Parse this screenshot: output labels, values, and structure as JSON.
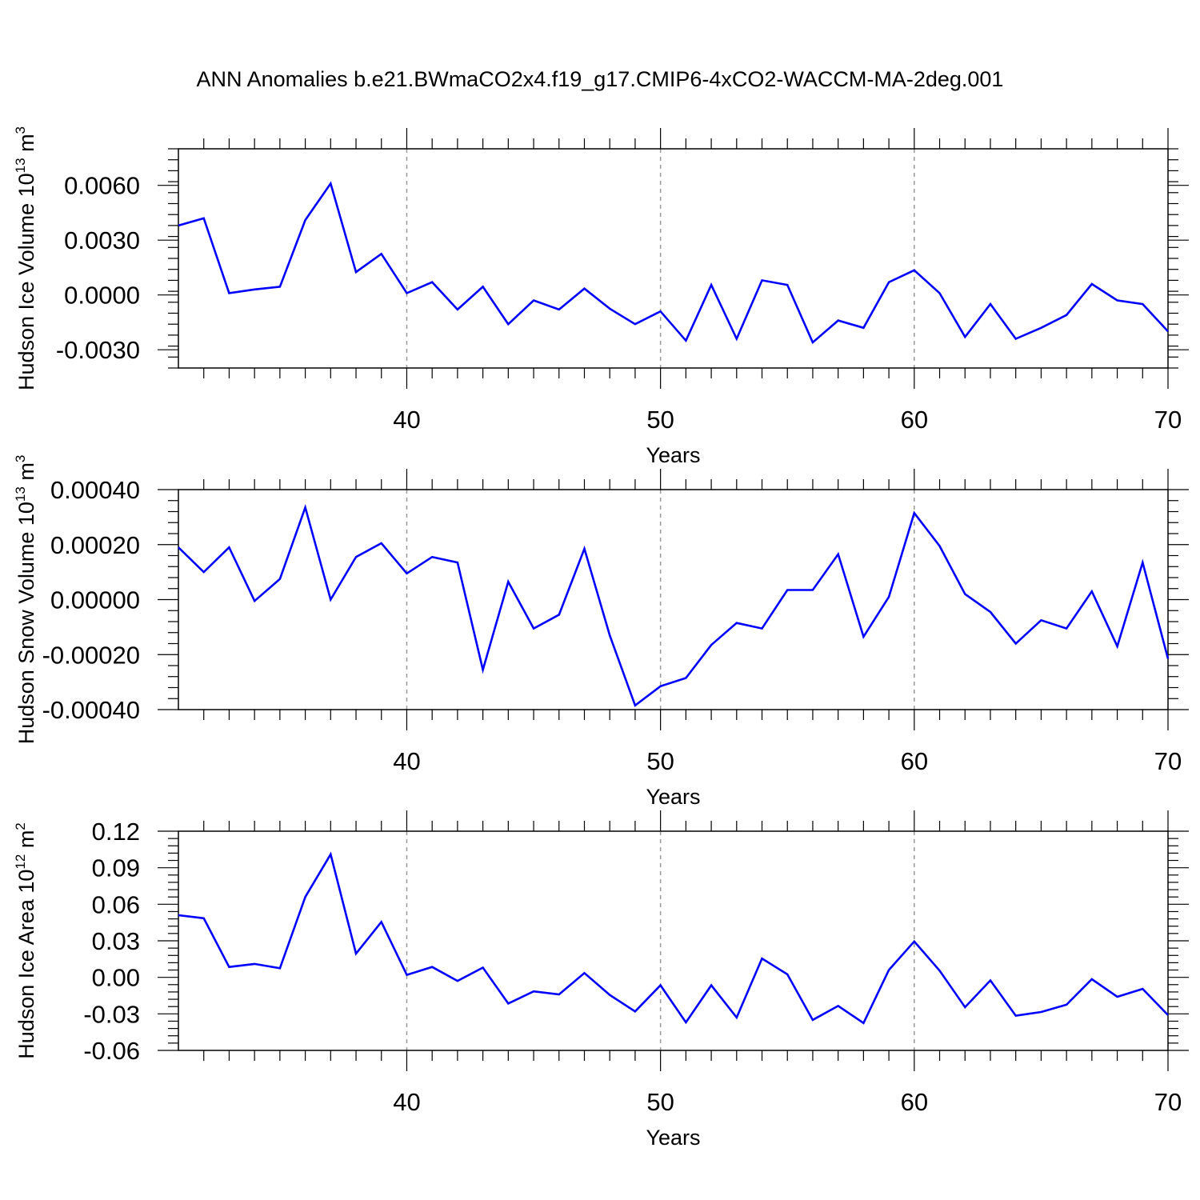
{
  "title": "ANN Anomalies b.e21.BWmaCO2x4.f19_g17.CMIP6-4xCO2-WACCM-MA-2deg.001",
  "colors": {
    "line": "#0000ff",
    "axis": "#000000",
    "grid": "#999999"
  },
  "chart_data": [
    {
      "type": "line",
      "ylabel_main": "Hudson Ice Volume 10",
      "ylabel_exp": "13",
      "ylabel_unit": " m",
      "ylabel_unit_exp": "3",
      "xlabel": "Years",
      "xlim": [
        31,
        70
      ],
      "ylim": [
        -0.004,
        0.008
      ],
      "xticks": [
        40,
        50,
        60,
        70
      ],
      "yticks": [
        -0.003,
        0.0,
        0.003,
        0.006
      ],
      "ytick_labels": [
        "-0.0030",
        "0.0000",
        "0.0030",
        "0.0060"
      ],
      "grid_x": [
        40,
        50,
        60
      ],
      "x": [
        31,
        32,
        33,
        34,
        35,
        36,
        37,
        38,
        39,
        40,
        41,
        42,
        43,
        44,
        45,
        46,
        47,
        48,
        49,
        50,
        51,
        52,
        53,
        54,
        55,
        56,
        57,
        58,
        59,
        60,
        61,
        62,
        63,
        64,
        65,
        66,
        67,
        68,
        69,
        70
      ],
      "series": [
        {
          "values": [
            0.0038,
            0.0042,
            0.0001,
            0.0003,
            0.00045,
            0.0041,
            0.0061,
            0.00125,
            0.00225,
            0.0001,
            0.0007,
            -0.0008,
            0.00045,
            -0.0016,
            -0.0003,
            -0.0008,
            0.00035,
            -0.00075,
            -0.0016,
            -0.0009,
            -0.0025,
            0.00055,
            -0.0024,
            0.0008,
            0.00055,
            -0.0026,
            -0.0014,
            -0.0018,
            0.0007,
            0.00135,
            0.0001,
            -0.0023,
            -0.0005,
            -0.0024,
            -0.0018,
            -0.0011,
            0.0006,
            -0.0003,
            -0.0005,
            -0.002
          ]
        }
      ]
    },
    {
      "type": "line",
      "ylabel_main": "Hudson Snow Volume 10",
      "ylabel_exp": "13",
      "ylabel_unit": " m",
      "ylabel_unit_exp": "3",
      "xlabel": "Years",
      "xlim": [
        31,
        70
      ],
      "ylim": [
        -0.0004,
        0.0004
      ],
      "xticks": [
        40,
        50,
        60,
        70
      ],
      "yticks": [
        -0.0004,
        -0.0002,
        0.0,
        0.0002,
        0.0004
      ],
      "ytick_labels": [
        "-0.00040",
        "-0.00020",
        "0.00000",
        "0.00020",
        "0.00040"
      ],
      "grid_x": [
        40,
        50,
        60
      ],
      "x": [
        31,
        32,
        33,
        34,
        35,
        36,
        37,
        38,
        39,
        40,
        41,
        42,
        43,
        44,
        45,
        46,
        47,
        48,
        49,
        50,
        51,
        52,
        53,
        54,
        55,
        56,
        57,
        58,
        59,
        60,
        61,
        62,
        63,
        64,
        65,
        66,
        67,
        68,
        69,
        70
      ],
      "series": [
        {
          "values": [
            0.00019,
            0.0001,
            0.00019,
            -5e-06,
            7.5e-05,
            0.000335,
            0.0,
            0.000155,
            0.000205,
            9.5e-05,
            0.000155,
            0.000135,
            -0.000255,
            6.5e-05,
            -0.000105,
            -5.5e-05,
            0.000185,
            -0.00013,
            -0.000385,
            -0.000315,
            -0.000285,
            -0.000165,
            -8.5e-05,
            -0.000105,
            3.5e-05,
            3.5e-05,
            0.000165,
            -0.000135,
            1e-05,
            0.000315,
            0.000195,
            2e-05,
            -4.5e-05,
            -0.00016,
            -7.5e-05,
            -0.000105,
            3e-05,
            -0.00017,
            0.000135,
            -0.000215
          ]
        }
      ]
    },
    {
      "type": "line",
      "ylabel_main": "Hudson Ice Area 10",
      "ylabel_exp": "12",
      "ylabel_unit": " m",
      "ylabel_unit_exp": "2",
      "xlabel": "Years",
      "xlim": [
        31,
        70
      ],
      "ylim": [
        -0.06,
        0.12
      ],
      "xticks": [
        40,
        50,
        60,
        70
      ],
      "yticks": [
        -0.06,
        -0.03,
        0.0,
        0.03,
        0.06,
        0.09,
        0.12
      ],
      "ytick_labels": [
        "-0.06",
        "-0.03",
        "0.00",
        "0.03",
        "0.06",
        "0.09",
        "0.12"
      ],
      "grid_x": [
        40,
        50,
        60
      ],
      "x": [
        31,
        32,
        33,
        34,
        35,
        36,
        37,
        38,
        39,
        40,
        41,
        42,
        43,
        44,
        45,
        46,
        47,
        48,
        49,
        50,
        51,
        52,
        53,
        54,
        55,
        56,
        57,
        58,
        59,
        60,
        61,
        62,
        63,
        64,
        65,
        66,
        67,
        68,
        69,
        70
      ],
      "series": [
        {
          "values": [
            0.051,
            0.0485,
            0.0085,
            0.011,
            0.0075,
            0.066,
            0.101,
            0.0195,
            0.0455,
            0.002,
            0.0085,
            -0.003,
            0.008,
            -0.0215,
            -0.0115,
            -0.014,
            0.0035,
            -0.0145,
            -0.028,
            -0.0065,
            -0.037,
            -0.0065,
            -0.033,
            0.0155,
            0.0025,
            -0.035,
            -0.0235,
            -0.0375,
            0.006,
            0.0295,
            0.0055,
            -0.0245,
            -0.0025,
            -0.0315,
            -0.0285,
            -0.0225,
            -0.0015,
            -0.016,
            -0.0095,
            -0.031
          ]
        }
      ]
    }
  ]
}
